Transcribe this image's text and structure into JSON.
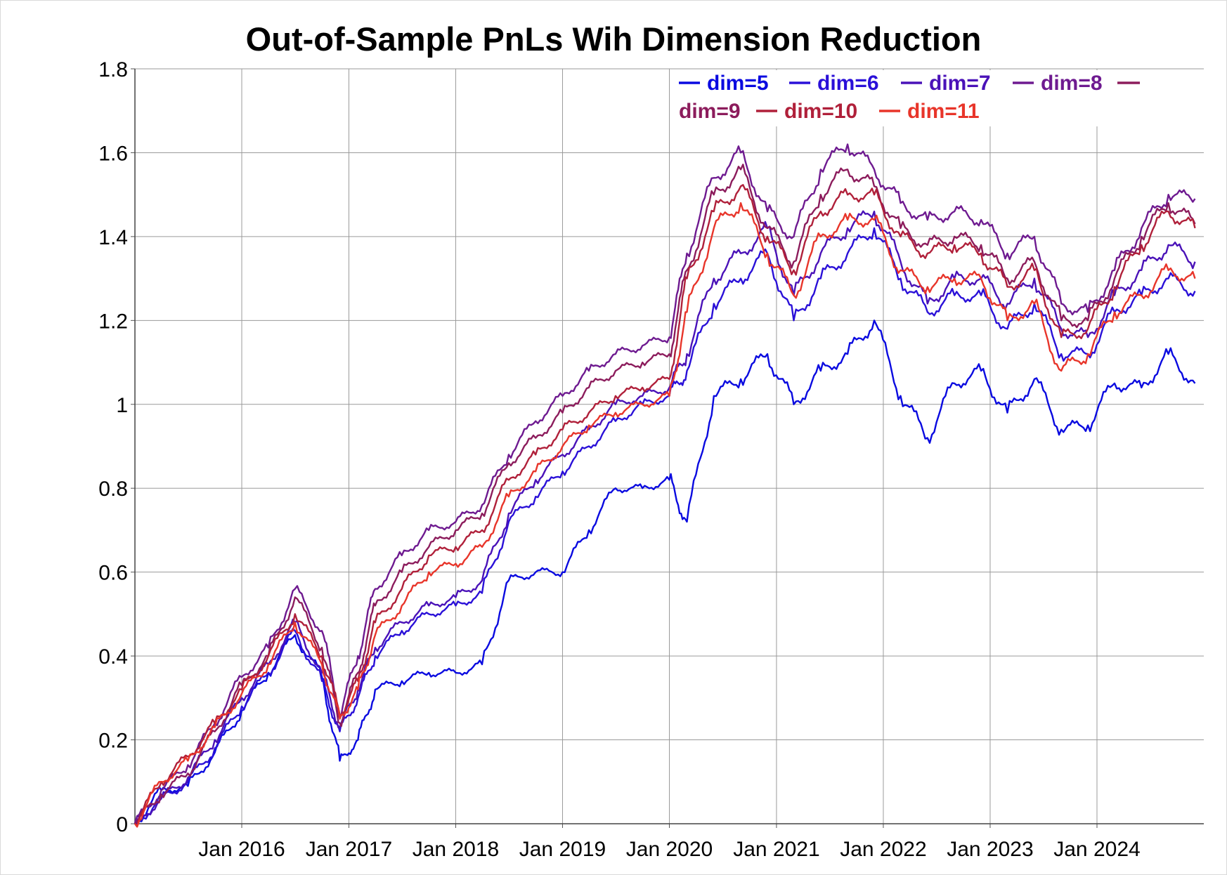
{
  "chart_data": {
    "type": "line",
    "title": "Out-of-Sample PnLs Wih Dimension Reduction",
    "xlabel": "",
    "ylabel": "",
    "x_type": "date",
    "xlim": [
      "2015-01-01",
      "2024-12-31"
    ],
    "ylim": [
      0,
      1.8
    ],
    "grid": true,
    "legend_placement": "top-right",
    "x_ticks": [
      "2016-01-01",
      "2017-01-01",
      "2018-01-01",
      "2019-01-01",
      "2020-01-01",
      "2021-01-01",
      "2022-01-01",
      "2023-01-01",
      "2024-01-01"
    ],
    "x_tick_labels": [
      "Jan 2016",
      "Jan 2017",
      "Jan 2018",
      "Jan 2019",
      "Jan 2020",
      "Jan 2021",
      "Jan 2022",
      "Jan 2023",
      "Jan 2024"
    ],
    "y_ticks": [
      0,
      0.2,
      0.4,
      0.6,
      0.8,
      1,
      1.2,
      1.4,
      1.6,
      1.8
    ],
    "y_tick_labels": [
      "0",
      "0.2",
      "0.4",
      "0.6",
      "0.8",
      "1",
      "1.2",
      "1.4",
      "1.6",
      "1.8"
    ],
    "x": [
      "2015-01",
      "2015-04",
      "2015-07",
      "2015-10",
      "2016-01",
      "2016-04",
      "2016-07",
      "2016-10",
      "2016-12",
      "2017-02",
      "2017-04",
      "2017-07",
      "2017-10",
      "2018-01",
      "2018-04",
      "2018-07",
      "2018-10",
      "2019-01",
      "2019-04",
      "2019-07",
      "2019-10",
      "2020-01",
      "2020-03",
      "2020-06",
      "2020-09",
      "2020-12",
      "2021-03",
      "2021-06",
      "2021-09",
      "2021-12",
      "2022-03",
      "2022-06",
      "2022-09",
      "2022-12",
      "2023-03",
      "2023-06",
      "2023-09",
      "2023-12",
      "2024-03",
      "2024-06",
      "2024-09",
      "2024-12"
    ],
    "series": [
      {
        "name": "dim=5",
        "color": "#0a0ae0",
        "values": [
          0.0,
          0.08,
          0.09,
          0.17,
          0.27,
          0.36,
          0.45,
          0.35,
          0.15,
          0.2,
          0.32,
          0.34,
          0.36,
          0.36,
          0.38,
          0.58,
          0.6,
          0.6,
          0.7,
          0.8,
          0.8,
          0.82,
          0.72,
          1.02,
          1.06,
          1.12,
          1.0,
          1.08,
          1.12,
          1.2,
          1.02,
          0.92,
          1.05,
          1.08,
          0.98,
          1.06,
          0.94,
          0.95,
          1.05,
          1.04,
          1.12,
          1.05
        ]
      },
      {
        "name": "dim=6",
        "color": "#2a10d8",
        "values": [
          0.0,
          0.06,
          0.1,
          0.18,
          0.28,
          0.36,
          0.46,
          0.34,
          0.22,
          0.3,
          0.4,
          0.46,
          0.5,
          0.52,
          0.55,
          0.72,
          0.78,
          0.84,
          0.9,
          0.96,
          1.0,
          1.02,
          1.08,
          1.24,
          1.3,
          1.36,
          1.2,
          1.3,
          1.36,
          1.42,
          1.3,
          1.22,
          1.26,
          1.26,
          1.18,
          1.24,
          1.12,
          1.12,
          1.22,
          1.26,
          1.3,
          1.27
        ]
      },
      {
        "name": "dim=7",
        "color": "#4a12b8",
        "values": [
          0.0,
          0.06,
          0.11,
          0.2,
          0.3,
          0.38,
          0.48,
          0.36,
          0.23,
          0.32,
          0.42,
          0.48,
          0.52,
          0.54,
          0.58,
          0.74,
          0.82,
          0.88,
          0.94,
          1.0,
          1.02,
          1.04,
          1.12,
          1.3,
          1.36,
          1.42,
          1.26,
          1.36,
          1.42,
          1.46,
          1.34,
          1.24,
          1.3,
          1.3,
          1.24,
          1.3,
          1.18,
          1.16,
          1.26,
          1.32,
          1.38,
          1.34
        ]
      },
      {
        "name": "dim=8",
        "color": "#6e1a90",
        "values": [
          0.0,
          0.08,
          0.14,
          0.24,
          0.35,
          0.42,
          0.56,
          0.46,
          0.26,
          0.4,
          0.56,
          0.64,
          0.7,
          0.72,
          0.76,
          0.88,
          0.96,
          1.02,
          1.08,
          1.12,
          1.14,
          1.16,
          1.36,
          1.54,
          1.6,
          1.46,
          1.4,
          1.56,
          1.62,
          1.56,
          1.48,
          1.44,
          1.46,
          1.44,
          1.36,
          1.4,
          1.24,
          1.22,
          1.32,
          1.42,
          1.5,
          1.49
        ]
      },
      {
        "name": "dim=9",
        "color": "#8c1c5c",
        "values": [
          0.0,
          0.07,
          0.12,
          0.22,
          0.33,
          0.4,
          0.54,
          0.42,
          0.24,
          0.36,
          0.52,
          0.6,
          0.66,
          0.7,
          0.74,
          0.86,
          0.92,
          0.98,
          1.04,
          1.08,
          1.1,
          1.12,
          1.32,
          1.5,
          1.56,
          1.42,
          1.34,
          1.5,
          1.56,
          1.52,
          1.42,
          1.38,
          1.4,
          1.38,
          1.3,
          1.34,
          1.2,
          1.2,
          1.3,
          1.4,
          1.48,
          1.43
        ]
      },
      {
        "name": "dim=10",
        "color": "#b0203a",
        "values": [
          0.0,
          0.1,
          0.16,
          0.24,
          0.32,
          0.4,
          0.5,
          0.4,
          0.26,
          0.34,
          0.48,
          0.56,
          0.64,
          0.66,
          0.7,
          0.82,
          0.88,
          0.94,
          0.98,
          1.02,
          1.04,
          1.06,
          1.3,
          1.46,
          1.52,
          1.4,
          1.32,
          1.46,
          1.5,
          1.5,
          1.4,
          1.36,
          1.38,
          1.36,
          1.28,
          1.32,
          1.16,
          1.18,
          1.28,
          1.38,
          1.46,
          1.42
        ]
      },
      {
        "name": "dim=11",
        "color": "#e8352a",
        "values": [
          0.0,
          0.1,
          0.15,
          0.23,
          0.31,
          0.38,
          0.48,
          0.38,
          0.25,
          0.32,
          0.45,
          0.52,
          0.6,
          0.62,
          0.66,
          0.78,
          0.84,
          0.9,
          0.95,
          0.98,
          1.0,
          1.02,
          1.22,
          1.42,
          1.48,
          1.36,
          1.26,
          1.4,
          1.44,
          1.44,
          1.32,
          1.28,
          1.3,
          1.3,
          1.2,
          1.24,
          1.08,
          1.12,
          1.22,
          1.26,
          1.32,
          1.3
        ]
      }
    ]
  }
}
